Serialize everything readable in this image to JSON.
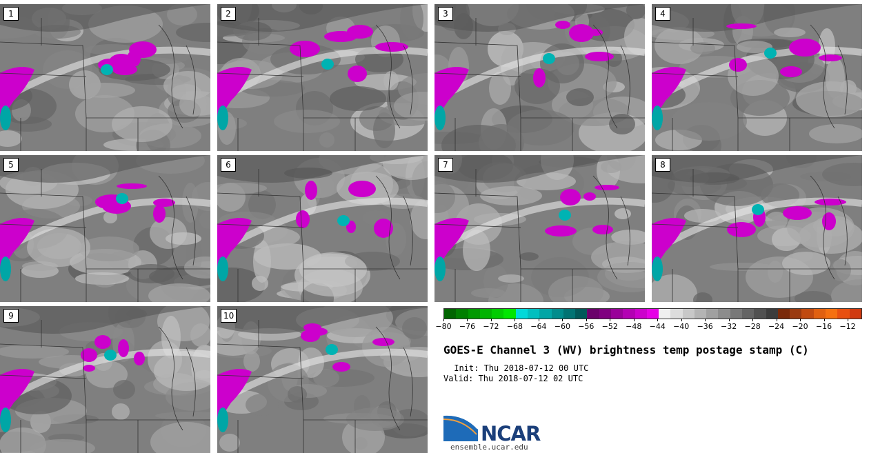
{
  "panels": [
    {
      "label": "1"
    },
    {
      "label": "2"
    },
    {
      "label": "3"
    },
    {
      "label": "4"
    },
    {
      "label": "5"
    },
    {
      "label": "6"
    },
    {
      "label": "7"
    },
    {
      "label": "8"
    },
    {
      "label": "9"
    },
    {
      "label": "10"
    }
  ],
  "colorbar": {
    "colors": [
      "#006400",
      "#007f00",
      "#009900",
      "#00b300",
      "#00cc00",
      "#00e600",
      "#00d9d9",
      "#00bfbf",
      "#00a6a6",
      "#008c8c",
      "#007373",
      "#005959",
      "#6b006b",
      "#800080",
      "#990099",
      "#b300b3",
      "#cc00cc",
      "#e600e6",
      "#f0f0f0",
      "#dcdcdc",
      "#c8c8c8",
      "#b4b4b4",
      "#a0a0a0",
      "#8c8c8c",
      "#787878",
      "#646464",
      "#505050",
      "#3c3c3c",
      "#7a2a0a",
      "#9a3a10",
      "#c04a10",
      "#e06010",
      "#f57010",
      "#e85010",
      "#d03a10"
    ],
    "tick_labels": [
      "−80",
      "−76",
      "−72",
      "−68",
      "−64",
      "−60",
      "−56",
      "−52",
      "−48",
      "−44",
      "−40",
      "−36",
      "−32",
      "−28",
      "−24",
      "−20",
      "−16",
      "−12"
    ]
  },
  "title": "GOES-E Channel 3 (WV) brightness temp postage stamp (C)",
  "init": " Init: Thu 2018-07-12 00 UTC",
  "valid": "Valid: Thu 2018-07-12 02 UTC",
  "logo": {
    "name": "NCAR",
    "url": "ensemble.ucar.edu"
  }
}
